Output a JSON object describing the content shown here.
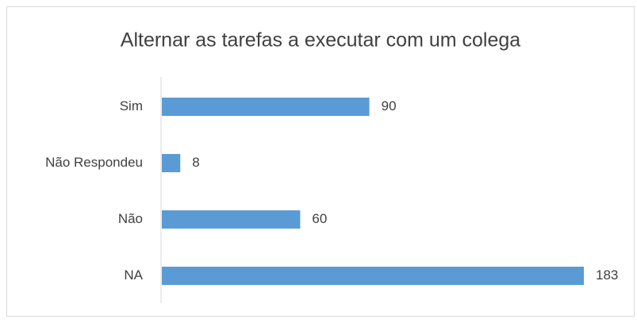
{
  "chart_data": {
    "type": "barh",
    "title": "Alternar as tarefas a executar com um colega",
    "categories": [
      "Sim",
      "Não Respondeu",
      "Não",
      "NA"
    ],
    "values": [
      90,
      8,
      60,
      183
    ],
    "color": "#5b9bd5"
  }
}
